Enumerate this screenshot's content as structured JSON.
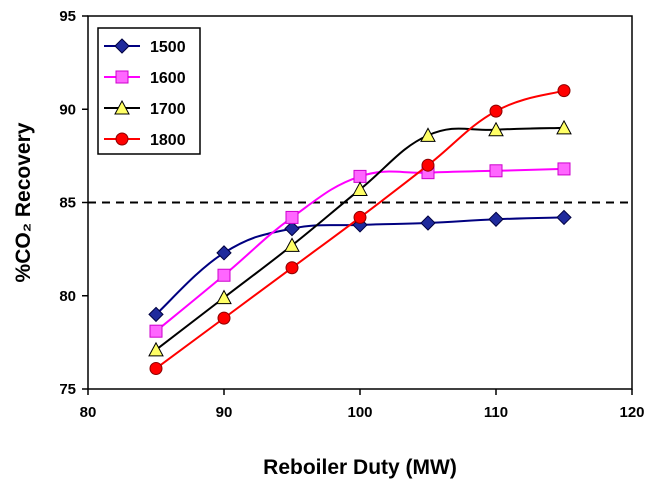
{
  "chart_data": {
    "type": "line",
    "title": "",
    "xlabel": "Reboiler Duty (MW)",
    "ylabel": "%CO₂ Recovery",
    "xlim": [
      80,
      120
    ],
    "ylim": [
      75,
      95
    ],
    "xticks": [
      80,
      90,
      100,
      110,
      120
    ],
    "yticks": [
      75,
      80,
      85,
      90,
      95
    ],
    "grid": false,
    "legend_position": "top-left",
    "reference_line": {
      "y": 85,
      "style": "dashed",
      "color": "#000000"
    },
    "x": [
      85,
      90,
      95,
      100,
      105,
      110,
      115
    ],
    "series": [
      {
        "name": "1500",
        "marker": "diamond",
        "line_color": "#000080",
        "marker_fill": "#1f2a9c",
        "values": [
          79.0,
          82.3,
          83.6,
          83.8,
          83.9,
          84.1,
          84.2
        ]
      },
      {
        "name": "1600",
        "marker": "square",
        "line_color": "#ff00ff",
        "marker_fill": "#ff66ff",
        "values": [
          78.1,
          81.1,
          84.2,
          86.4,
          86.6,
          86.7,
          86.8
        ]
      },
      {
        "name": "1700",
        "marker": "triangle",
        "line_color": "#000000",
        "marker_fill": "#ffff66",
        "values": [
          77.1,
          79.9,
          82.7,
          85.7,
          88.6,
          88.9,
          89.0
        ]
      },
      {
        "name": "1800",
        "marker": "circle",
        "line_color": "#ff0000",
        "marker_fill": "#ff0000",
        "values": [
          76.1,
          78.8,
          81.5,
          84.2,
          87.0,
          89.9,
          91.0
        ]
      }
    ]
  }
}
